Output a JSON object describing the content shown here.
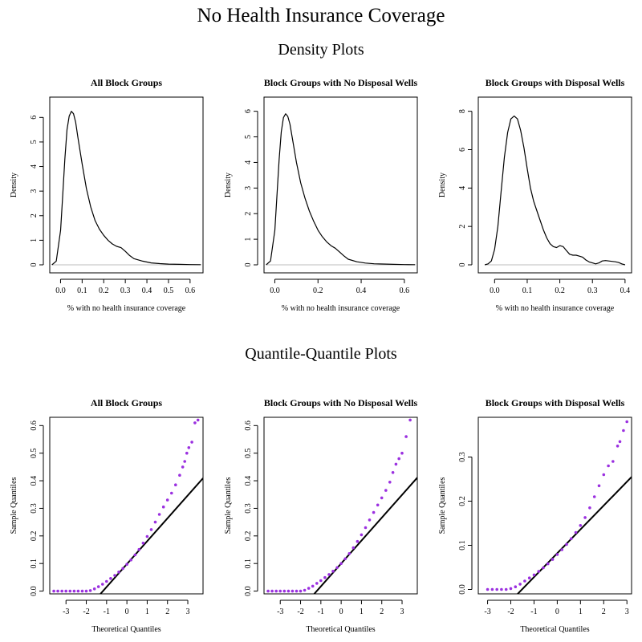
{
  "page": {
    "title": "No Health Insurance Coverage",
    "density_heading": "Density Plots",
    "qq_heading": "Quantile-Quantile Plots"
  },
  "colors": {
    "curve": "#000000",
    "baseline": "#bebebe",
    "points": "#9b30e0",
    "qqline": "#000000"
  },
  "chart_data": [
    {
      "type": "line",
      "id": "density-all",
      "title": "All Block Groups",
      "xlabel": "% with no health insurance coverage",
      "ylabel": "Density",
      "xlim": [
        -0.05,
        0.66
      ],
      "ylim": [
        0,
        6.25
      ],
      "xticks": [
        0.0,
        0.1,
        0.2,
        0.3,
        0.4,
        0.5,
        0.6
      ],
      "xtick_labels": [
        "0.0",
        "0.1",
        "0.2",
        "0.3",
        "0.4",
        "0.5",
        "0.6"
      ],
      "yticks": [
        0,
        1,
        2,
        3,
        4,
        5,
        6
      ],
      "ytick_labels": [
        "0",
        "1",
        "2",
        "3",
        "4",
        "5",
        "6"
      ],
      "x": [
        -0.04,
        -0.02,
        0.0,
        0.01,
        0.02,
        0.03,
        0.04,
        0.05,
        0.06,
        0.07,
        0.08,
        0.1,
        0.12,
        0.14,
        0.16,
        0.18,
        0.2,
        0.22,
        0.24,
        0.26,
        0.28,
        0.3,
        0.32,
        0.34,
        0.38,
        0.42,
        0.46,
        0.5,
        0.55,
        0.6,
        0.65
      ],
      "y": [
        0.0,
        0.15,
        1.4,
        2.8,
        4.3,
        5.5,
        6.05,
        6.25,
        6.15,
        5.8,
        5.2,
        4.1,
        3.1,
        2.35,
        1.8,
        1.45,
        1.2,
        1.0,
        0.85,
        0.75,
        0.7,
        0.55,
        0.38,
        0.25,
        0.15,
        0.08,
        0.05,
        0.03,
        0.02,
        0.01,
        0.005
      ]
    },
    {
      "type": "line",
      "id": "density-no-wells",
      "title": "Block Groups with No Disposal Wells",
      "xlabel": "% with no health insurance coverage",
      "ylabel": "Density",
      "xlim": [
        -0.05,
        0.66
      ],
      "ylim": [
        0,
        6.0
      ],
      "xticks": [
        0.0,
        0.2,
        0.4,
        0.6
      ],
      "xtick_labels": [
        "0.0",
        "0.2",
        "0.4",
        "0.6"
      ],
      "yticks": [
        0,
        1,
        2,
        3,
        4,
        5,
        6
      ],
      "ytick_labels": [
        "0",
        "1",
        "2",
        "3",
        "4",
        "5",
        "6"
      ],
      "x": [
        -0.04,
        -0.02,
        0.0,
        0.01,
        0.02,
        0.03,
        0.04,
        0.05,
        0.06,
        0.07,
        0.08,
        0.1,
        0.12,
        0.14,
        0.16,
        0.18,
        0.2,
        0.22,
        0.24,
        0.26,
        0.28,
        0.3,
        0.32,
        0.34,
        0.38,
        0.42,
        0.46,
        0.5,
        0.55,
        0.6,
        0.65
      ],
      "y": [
        0.0,
        0.15,
        1.35,
        2.7,
        4.1,
        5.2,
        5.75,
        5.9,
        5.8,
        5.5,
        5.0,
        4.0,
        3.2,
        2.6,
        2.1,
        1.7,
        1.35,
        1.1,
        0.9,
        0.75,
        0.65,
        0.5,
        0.35,
        0.22,
        0.12,
        0.07,
        0.04,
        0.03,
        0.02,
        0.01,
        0.005
      ]
    },
    {
      "type": "line",
      "id": "density-wells",
      "title": "Block Groups with Disposal Wells",
      "xlabel": "% with no health insurance coverage",
      "ylabel": "Density",
      "xlim": [
        -0.05,
        0.42
      ],
      "ylim": [
        0,
        8.0
      ],
      "xticks": [
        0.0,
        0.1,
        0.2,
        0.3,
        0.4
      ],
      "xtick_labels": [
        "0.0",
        "0.1",
        "0.2",
        "0.3",
        "0.4"
      ],
      "yticks": [
        0,
        2,
        4,
        6,
        8
      ],
      "ytick_labels": [
        "0",
        "2",
        "4",
        "6",
        "8"
      ],
      "x": [
        -0.03,
        -0.02,
        -0.01,
        0.0,
        0.01,
        0.02,
        0.03,
        0.04,
        0.05,
        0.06,
        0.07,
        0.08,
        0.09,
        0.1,
        0.11,
        0.12,
        0.13,
        0.14,
        0.15,
        0.16,
        0.17,
        0.18,
        0.19,
        0.2,
        0.21,
        0.22,
        0.23,
        0.24,
        0.25,
        0.26,
        0.27,
        0.28,
        0.29,
        0.3,
        0.31,
        0.32,
        0.33,
        0.34,
        0.35,
        0.36,
        0.37,
        0.38,
        0.39,
        0.4
      ],
      "y": [
        0.0,
        0.05,
        0.2,
        0.8,
        2.0,
        3.8,
        5.6,
        6.9,
        7.6,
        7.75,
        7.6,
        7.0,
        6.1,
        5.0,
        4.0,
        3.3,
        2.8,
        2.3,
        1.8,
        1.4,
        1.1,
        0.95,
        0.9,
        1.0,
        0.95,
        0.75,
        0.55,
        0.5,
        0.5,
        0.45,
        0.4,
        0.25,
        0.15,
        0.1,
        0.05,
        0.1,
        0.2,
        0.22,
        0.2,
        0.18,
        0.16,
        0.12,
        0.05,
        0.0
      ]
    },
    {
      "type": "scatter",
      "id": "qq-all",
      "title": "All Block Groups",
      "xlabel": "Theoretical Quantiles",
      "ylabel": "Sample Quantiles",
      "xlim": [
        -3.8,
        3.75
      ],
      "ylim": [
        -0.01,
        0.63
      ],
      "xticks": [
        -3,
        -2,
        -1,
        0,
        1,
        2,
        3
      ],
      "xtick_labels": [
        "-3",
        "-2",
        "-1",
        "0",
        "1",
        "2",
        "3"
      ],
      "yticks": [
        0.0,
        0.1,
        0.2,
        0.3,
        0.4,
        0.5,
        0.6
      ],
      "ytick_labels": [
        "0.0",
        "0.1",
        "0.2",
        "0.3",
        "0.4",
        "0.5",
        "0.6"
      ],
      "qq_line": {
        "intercept": 0.098,
        "slope": 0.083
      },
      "points_x": [
        -3.6,
        -3.4,
        -3.2,
        -3.0,
        -2.8,
        -2.6,
        -2.4,
        -2.2,
        -2.0,
        -1.8,
        -1.6,
        -1.4,
        -1.2,
        -1.0,
        -0.8,
        -0.6,
        -0.4,
        -0.2,
        0.0,
        0.2,
        0.4,
        0.6,
        0.8,
        1.0,
        1.2,
        1.4,
        1.6,
        1.8,
        2.0,
        2.2,
        2.4,
        2.6,
        2.75,
        2.85,
        2.95,
        3.05,
        3.2,
        3.35,
        3.5
      ],
      "points_y": [
        0.0,
        0.0,
        0.0,
        0.0,
        0.0,
        0.0,
        0.0,
        0.0,
        0.0,
        0.002,
        0.008,
        0.016,
        0.025,
        0.035,
        0.046,
        0.057,
        0.069,
        0.082,
        0.097,
        0.113,
        0.131,
        0.151,
        0.174,
        0.198,
        0.223,
        0.25,
        0.278,
        0.305,
        0.33,
        0.355,
        0.385,
        0.42,
        0.45,
        0.47,
        0.5,
        0.52,
        0.54,
        0.61,
        0.62
      ]
    },
    {
      "type": "scatter",
      "id": "qq-no-wells",
      "title": "Block Groups with No Disposal Wells",
      "xlabel": "Theoretical Quantiles",
      "ylabel": "Sample Quantiles",
      "xlim": [
        -3.8,
        3.75
      ],
      "ylim": [
        -0.01,
        0.63
      ],
      "xticks": [
        -3,
        -2,
        -1,
        0,
        1,
        2,
        3
      ],
      "xtick_labels": [
        "-3",
        "-2",
        "-1",
        "0",
        "1",
        "2",
        "3"
      ],
      "yticks": [
        0.0,
        0.1,
        0.2,
        0.3,
        0.4,
        0.5,
        0.6
      ],
      "ytick_labels": [
        "0.0",
        "0.1",
        "0.2",
        "0.3",
        "0.4",
        "0.5",
        "0.6"
      ],
      "qq_line": {
        "intercept": 0.1,
        "slope": 0.083
      },
      "points_x": [
        -3.6,
        -3.4,
        -3.2,
        -3.0,
        -2.8,
        -2.6,
        -2.4,
        -2.2,
        -2.0,
        -1.8,
        -1.6,
        -1.4,
        -1.2,
        -1.0,
        -0.8,
        -0.6,
        -0.4,
        -0.2,
        0.0,
        0.2,
        0.4,
        0.6,
        0.8,
        1.0,
        1.2,
        1.4,
        1.6,
        1.8,
        2.0,
        2.2,
        2.4,
        2.55,
        2.7,
        2.85,
        3.0,
        3.2,
        3.4
      ],
      "points_y": [
        0.0,
        0.0,
        0.0,
        0.0,
        0.0,
        0.0,
        0.0,
        0.0,
        0.0,
        0.003,
        0.01,
        0.018,
        0.028,
        0.038,
        0.049,
        0.06,
        0.072,
        0.085,
        0.1,
        0.117,
        0.136,
        0.157,
        0.18,
        0.204,
        0.23,
        0.258,
        0.285,
        0.312,
        0.338,
        0.365,
        0.395,
        0.43,
        0.46,
        0.48,
        0.5,
        0.56,
        0.62
      ]
    },
    {
      "type": "scatter",
      "id": "qq-wells",
      "title": "Block Groups with Disposal Wells",
      "xlabel": "Theoretical Quantiles",
      "ylabel": "Sample Quantiles",
      "xlim": [
        -3.4,
        3.2
      ],
      "ylim": [
        -0.01,
        0.39
      ],
      "xticks": [
        -3,
        -2,
        -1,
        0,
        1,
        2,
        3
      ],
      "xtick_labels": [
        "-3",
        "-2",
        "-1",
        "0",
        "1",
        "2",
        "3"
      ],
      "yticks": [
        0.0,
        0.1,
        0.2,
        0.3
      ],
      "ytick_labels": [
        "0.0",
        "0.1",
        "0.2",
        "0.3"
      ],
      "qq_line": {
        "intercept": 0.082,
        "slope": 0.054
      },
      "points_x": [
        -3.0,
        -2.8,
        -2.6,
        -2.4,
        -2.2,
        -2.0,
        -1.8,
        -1.6,
        -1.4,
        -1.2,
        -1.0,
        -0.8,
        -0.6,
        -0.4,
        -0.2,
        0.0,
        0.2,
        0.4,
        0.6,
        0.8,
        1.0,
        1.2,
        1.4,
        1.6,
        1.8,
        2.0,
        2.2,
        2.4,
        2.6,
        2.7,
        2.85,
        3.0
      ],
      "points_y": [
        0.0,
        0.0,
        0.0,
        0.0,
        0.0,
        0.002,
        0.006,
        0.012,
        0.019,
        0.026,
        0.033,
        0.041,
        0.049,
        0.058,
        0.068,
        0.079,
        0.09,
        0.102,
        0.115,
        0.129,
        0.145,
        0.163,
        0.185,
        0.21,
        0.235,
        0.26,
        0.28,
        0.29,
        0.325,
        0.335,
        0.36,
        0.38
      ]
    }
  ]
}
